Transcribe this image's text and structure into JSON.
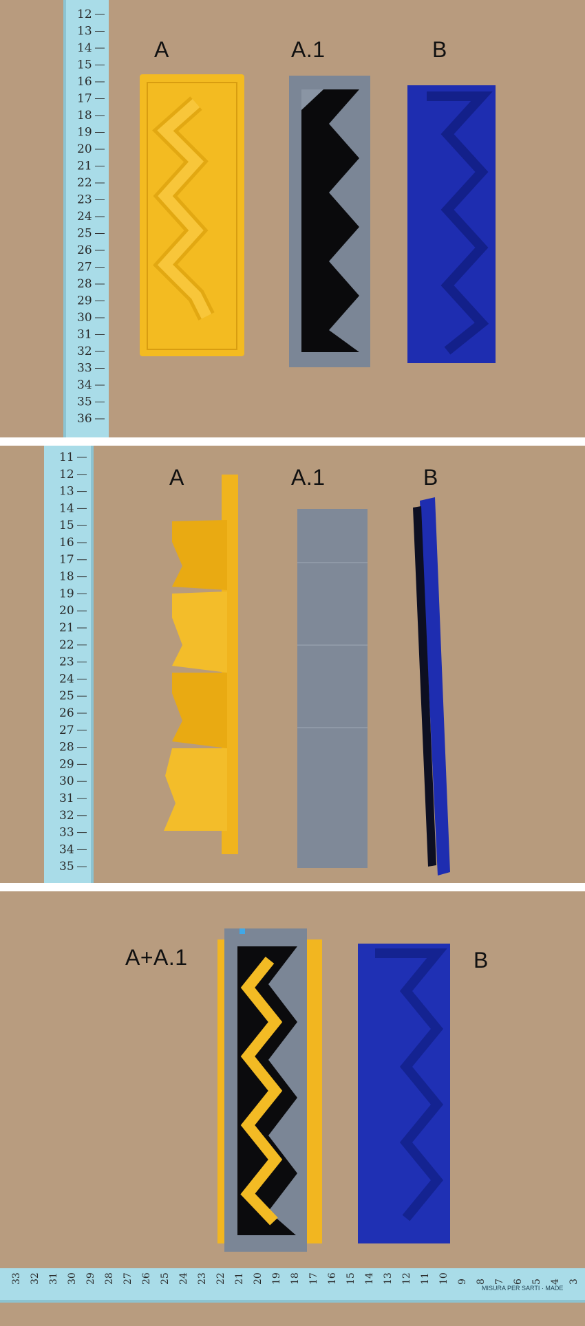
{
  "panels": [
    {
      "labels": {
        "left": "A",
        "middle": "A.1",
        "right": "B"
      },
      "ruler_ticks": [
        "12",
        "13",
        "14",
        "15",
        "16",
        "17",
        "18",
        "19",
        "20",
        "21",
        "22",
        "23",
        "24",
        "25",
        "26",
        "27",
        "28",
        "29",
        "30",
        "31",
        "32",
        "33",
        "34",
        "35",
        "36"
      ]
    },
    {
      "labels": {
        "left": "A",
        "middle": "A.1",
        "right": "B"
      },
      "ruler_ticks": [
        "11",
        "12",
        "13",
        "14",
        "15",
        "16",
        "17",
        "18",
        "19",
        "20",
        "21",
        "22",
        "23",
        "24",
        "25",
        "26",
        "27",
        "28",
        "29",
        "30",
        "31",
        "32",
        "33",
        "34",
        "35"
      ]
    },
    {
      "labels": {
        "left": "A+A.1",
        "right": "B"
      },
      "ruler_ticks": [
        "33",
        "32",
        "31",
        "30",
        "29",
        "28",
        "27",
        "26",
        "25",
        "24",
        "23",
        "22",
        "21",
        "20",
        "19",
        "18",
        "17",
        "16",
        "15",
        "14",
        "13",
        "12",
        "11",
        "10",
        "9",
        "8",
        "7",
        "6",
        "5",
        "4",
        "3"
      ],
      "ruler_brand": "MISURA PER SARTI · MADE"
    }
  ],
  "colors": {
    "background": "#b79a7d",
    "ruler": "#a8dbe6",
    "yellow": "#f1b51c",
    "grey": "#7c8797",
    "blue": "#1f2fb3"
  }
}
